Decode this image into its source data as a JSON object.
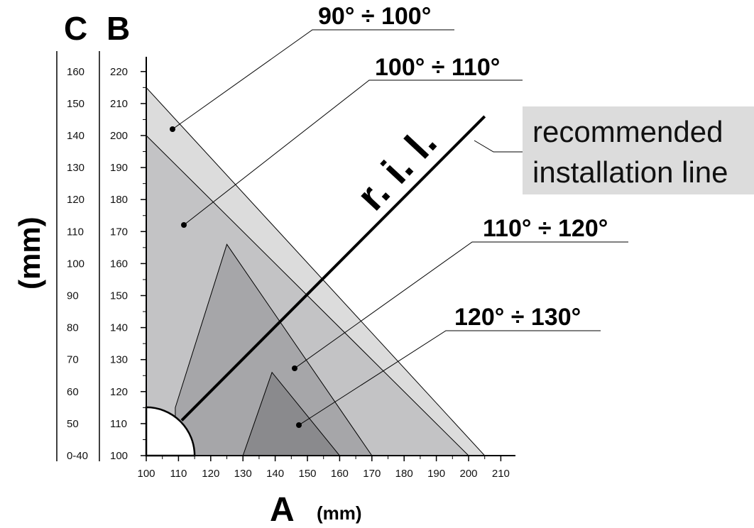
{
  "header": {
    "c_label": "C",
    "b_label": "B"
  },
  "y_unit": "(mm)",
  "x_axis": {
    "letter": "A",
    "unit": "(mm)"
  },
  "range_labels": {
    "r90_100": "90° ÷ 100°",
    "r100_110": "100° ÷ 110°",
    "r110_120": "110° ÷ 120°",
    "r120_130": "120° ÷ 130°"
  },
  "ril_label": "r. i. l.",
  "callout": {
    "line1": "recommended",
    "line2": "installation line"
  },
  "colors": {
    "zone_90_100": "#dcdcdc",
    "zone_100_110": "#c3c3c5",
    "zone_110_120": "#a6a6a9",
    "zone_120_130": "#8a8a8d",
    "callout_bg": "#dcdcdc",
    "line": "#000000"
  },
  "chart_data": {
    "type": "area",
    "x_axis_ticks": [
      "100",
      "110",
      "120",
      "130",
      "140",
      "150",
      "160",
      "170",
      "180",
      "190",
      "200",
      "210"
    ],
    "b_axis_ticks": [
      "100",
      "110",
      "120",
      "130",
      "140",
      "150",
      "160",
      "170",
      "180",
      "190",
      "200",
      "210",
      "220"
    ],
    "c_axis_ticks": [
      "0-40",
      "50",
      "60",
      "70",
      "80",
      "90",
      "100",
      "110",
      "120",
      "130",
      "140",
      "150",
      "160"
    ],
    "xlim": [
      100,
      210
    ],
    "ylim": [
      100,
      220
    ],
    "zones": [
      {
        "name": "90° ÷ 100°",
        "polygon": [
          [
            100,
            215
          ],
          [
            205,
            100
          ],
          [
            100,
            100
          ]
        ]
      },
      {
        "name": "100° ÷ 110°",
        "polygon": [
          [
            100,
            200
          ],
          [
            200,
            100
          ],
          [
            100,
            100
          ]
        ]
      },
      {
        "name": "110° ÷ 120°",
        "polygon": [
          [
            109,
            115
          ],
          [
            125,
            166
          ],
          [
            170,
            100
          ],
          [
            109,
            100
          ]
        ]
      },
      {
        "name": "120° ÷ 130°",
        "polygon": [
          [
            130,
            100
          ],
          [
            139,
            126
          ],
          [
            160,
            100
          ]
        ]
      }
    ],
    "recommended_installation_line": [
      [
        111,
        111
      ],
      [
        205,
        206
      ]
    ]
  }
}
